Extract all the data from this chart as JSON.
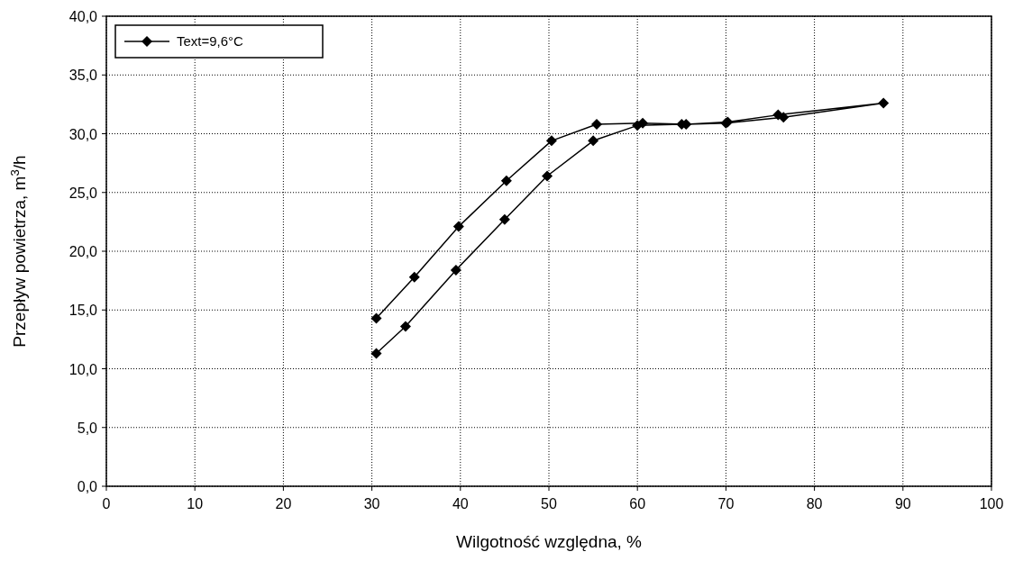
{
  "chart_data": {
    "type": "line",
    "xlabel": "Wilgotność względna, %",
    "ylabel": "Przepływ powietrza, m$^{3}$/h",
    "xlim": [
      0,
      100
    ],
    "xticks": [
      0,
      10,
      20,
      30,
      40,
      50,
      60,
      70,
      80,
      90,
      100
    ],
    "ylim": [
      0,
      40
    ],
    "yticks": [
      {
        "value": 0,
        "label": "0,0"
      },
      {
        "value": 5,
        "label": "5,0"
      },
      {
        "value": 10,
        "label": "10,0"
      },
      {
        "value": 15,
        "label": "15,0"
      },
      {
        "value": 20,
        "label": "20,0"
      },
      {
        "value": 25,
        "label": "25,0"
      },
      {
        "value": 30,
        "label": "30,0"
      },
      {
        "value": 35,
        "label": "35,0"
      },
      {
        "value": 40,
        "label": "40,0"
      }
    ],
    "grid": true,
    "legend": "top left",
    "marker": "diamond",
    "line_style": "solid",
    "series": [
      {
        "name": "Text=9,6°C",
        "color": "#000000",
        "x": [
          30.5,
          33.8,
          39.5,
          45,
          49.8,
          55,
          60,
          65,
          70,
          76.5,
          87.8,
          75.9,
          70.2,
          65.5,
          60.6,
          55.4,
          50.3,
          45.2,
          39.8,
          34.8,
          30.5
        ],
        "values": [
          11.3,
          13.6,
          18.4,
          22.7,
          26.4,
          29.4,
          30.7,
          30.8,
          30.9,
          31.4,
          32.6,
          31.6,
          31.0,
          30.8,
          30.9,
          30.8,
          29.4,
          26.0,
          22.1,
          17.8,
          14.3
        ]
      }
    ]
  }
}
